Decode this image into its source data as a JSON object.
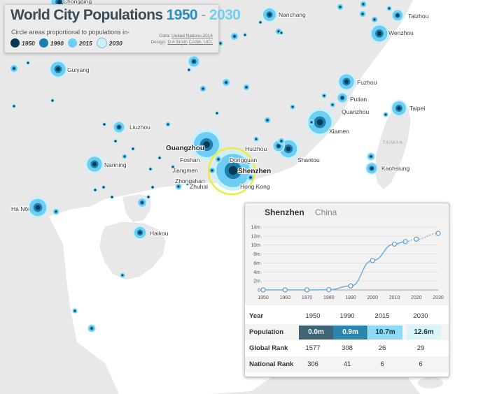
{
  "title": {
    "prefix": "World City Populations",
    "year_start": "1950",
    "separator": "-",
    "year_end": "2030"
  },
  "subtitle": "Circle areas proportional to populations in-",
  "legend": [
    {
      "label": "1950",
      "color": "#063a52"
    },
    {
      "label": "1990",
      "color": "#1a7fad"
    },
    {
      "label": "2015",
      "color": "#6dcdf2"
    },
    {
      "label": "2030",
      "color": "#c8f1fa"
    }
  ],
  "credits": {
    "data_label": "Data:",
    "data_source": "United Nations 2014",
    "design_label": "Design:",
    "designer": "D A Smith",
    "org": "CASA, UCL"
  },
  "cities": [
    {
      "name": "Nanchang"
    },
    {
      "name": "Taizhou"
    },
    {
      "name": "Wenzhou"
    },
    {
      "name": "Chongqing"
    },
    {
      "name": "Guiyang"
    },
    {
      "name": "Fuzhou"
    },
    {
      "name": "Putian"
    },
    {
      "name": "Quanzhou"
    },
    {
      "name": "Taipei"
    },
    {
      "name": "Xiamen"
    },
    {
      "name": "Liuzhou"
    },
    {
      "name": "Guangzhou"
    },
    {
      "name": "Huizhou"
    },
    {
      "name": "Foshan"
    },
    {
      "name": "Dongguan"
    },
    {
      "name": "Shantou"
    },
    {
      "name": "Nanning"
    },
    {
      "name": "Jiangmen"
    },
    {
      "name": "Shenzhen"
    },
    {
      "name": "Kaohsiung"
    },
    {
      "name": "Zhongshan"
    },
    {
      "name": "Zhuhai"
    },
    {
      "name": "Hong Kong"
    },
    {
      "name": "Hà Nội"
    },
    {
      "name": "Haikou"
    }
  ],
  "country_label": "TAIWAN",
  "panel": {
    "city": "Shenzhen",
    "country": "China",
    "chart_data": {
      "type": "line",
      "title": "Shenzhen",
      "x": [
        1950,
        1960,
        1970,
        1980,
        1990,
        2000,
        2010,
        2015,
        2020,
        2030
      ],
      "values": [
        0.003,
        0.005,
        0.006,
        0.06,
        0.88,
        6.55,
        10.2,
        10.75,
        11.3,
        12.6
      ],
      "projected_from": 2015,
      "xticks": [
        "1950",
        "1960",
        "1970",
        "1980",
        "1990",
        "2000",
        "2010",
        "2020",
        "2030"
      ],
      "ytick_values": [
        0,
        2,
        4,
        6,
        8,
        10,
        12,
        14
      ],
      "yticks": [
        "0",
        "2m",
        "4m",
        "6m",
        "8m",
        "10m",
        "12m",
        "14m"
      ],
      "xlim": [
        1950,
        2030
      ],
      "ylim": [
        0,
        14
      ],
      "xlabel": "",
      "ylabel": ""
    },
    "table": {
      "header_label": "Year",
      "years": [
        "1950",
        "1990",
        "2015",
        "2030"
      ],
      "population_label": "Population",
      "population": [
        "0.0m",
        "0.9m",
        "10.7m",
        "12.6m"
      ],
      "global_rank_label": "Global Rank",
      "global_rank": [
        "1577",
        "308",
        "26",
        "29"
      ],
      "national_rank_label": "National Rank",
      "national_rank": [
        "306",
        "41",
        "6",
        "6"
      ]
    }
  }
}
